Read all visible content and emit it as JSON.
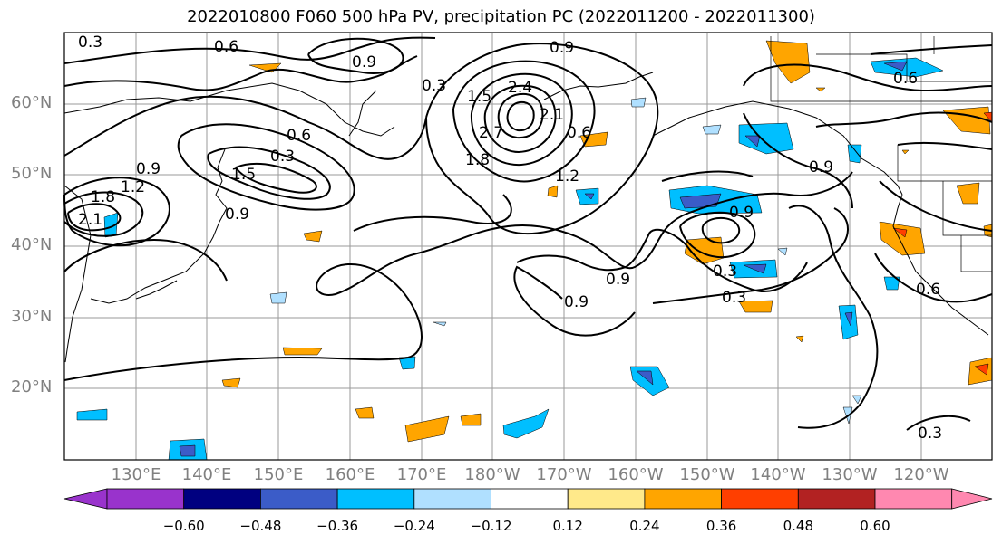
{
  "title": "2022010800 F060 500 hPa PV, precipitation PC (2022011200 - 2022011300)",
  "lat_labels": [
    "60°N",
    "50°N",
    "40°N",
    "30°N",
    "20°N"
  ],
  "lon_labels": [
    "130°E",
    "140°E",
    "150°E",
    "160°E",
    "170°E",
    "180°W",
    "170°W",
    "160°W",
    "150°W",
    "140°W",
    "130°W",
    "120°W"
  ],
  "contour_labels": [
    "0.3",
    "0.6",
    "0.9",
    "0.9",
    "0.3",
    "1.5",
    "2.4",
    "2.1",
    "2.7",
    "1.8",
    "0.6",
    "1.2",
    "0.6",
    "0.3",
    "0.6",
    "0.9",
    "1.5",
    "1.2",
    "0.9",
    "1.8",
    "2.1",
    "0.9",
    "0.3",
    "0.9",
    "0.3",
    "0.9",
    "0.9",
    "0.6",
    "0.3"
  ],
  "colorbar": {
    "ticks": [
      "−0.60",
      "−0.48",
      "−0.36",
      "−0.24",
      "−0.12",
      "0.12",
      "0.24",
      "0.36",
      "0.48",
      "0.60"
    ],
    "colors": [
      "#9933cc",
      "#000080",
      "#3b5cc8",
      "#00bfff",
      "#b0e0ff",
      "#ffffff",
      "#ffe98a",
      "#ffa500",
      "#ff3f00",
      "#b22222",
      "#ff88b0"
    ]
  }
}
